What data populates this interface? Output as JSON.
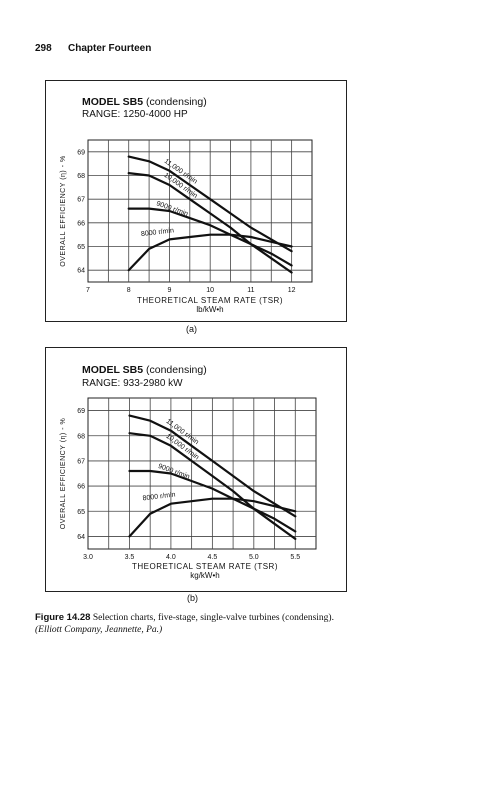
{
  "page": {
    "number": "298",
    "chapter": "Chapter Fourteen"
  },
  "figure": {
    "label": "Figure 14.28",
    "caption": "Selection charts, five-stage, single-valve turbines (condensing).",
    "credit": "(Elliott Company, Jeannette, Pa.)"
  },
  "chart_data": [
    {
      "type": "line",
      "panel_label": "(a)",
      "title_bold": "MODEL SB5",
      "title_rest": "(condensing)",
      "subtitle": "RANGE: 1250-4000 HP",
      "xlabel": "THEORETICAL STEAM RATE (TSR)",
      "xunit": "lb/kW•h",
      "ylabel": "OVERALL EFFICIENCY (η) - %",
      "xlim": [
        7,
        12.5
      ],
      "ylim": [
        63.5,
        69.5
      ],
      "xticks": [
        "7",
        "8",
        "9",
        "10",
        "11",
        "12"
      ],
      "xtick_values": [
        7,
        8,
        9,
        10,
        11,
        12
      ],
      "yticks": [
        "69",
        "68",
        "67",
        "66",
        "65",
        "64"
      ],
      "ytick_values": [
        69,
        68,
        67,
        66,
        65,
        64
      ],
      "grid": true,
      "series": [
        {
          "name": "11,000 r/min",
          "x": [
            8,
            8.5,
            9,
            9.5,
            10,
            10.5,
            11,
            11.5,
            12
          ],
          "y": [
            68.8,
            68.6,
            68.2,
            67.6,
            67.0,
            66.4,
            65.8,
            65.3,
            64.8
          ]
        },
        {
          "name": "10,000 r/min",
          "x": [
            8,
            8.5,
            9,
            9.5,
            10,
            10.5,
            11,
            11.5,
            12
          ],
          "y": [
            68.1,
            68.0,
            67.6,
            67.0,
            66.4,
            65.8,
            65.1,
            64.5,
            63.9
          ]
        },
        {
          "name": "9000 r/min",
          "x": [
            8,
            8.5,
            9,
            9.5,
            10,
            10.5,
            11,
            11.5,
            12
          ],
          "y": [
            66.6,
            66.6,
            66.5,
            66.2,
            65.9,
            65.5,
            65.1,
            64.7,
            64.2
          ]
        },
        {
          "name": "8000 r/min",
          "x": [
            8,
            8.5,
            9,
            9.5,
            10,
            10.5,
            11,
            11.5,
            12
          ],
          "y": [
            64.0,
            64.9,
            65.3,
            65.4,
            65.5,
            65.5,
            65.4,
            65.2,
            65.0
          ]
        }
      ]
    },
    {
      "type": "line",
      "panel_label": "(b)",
      "title_bold": "MODEL SB5",
      "title_rest": "(condensing)",
      "subtitle": "RANGE: 933-2980 kW",
      "xlabel": "THEORETICAL STEAM RATE (TSR)",
      "xunit": "kg/kW•h",
      "ylabel": "OVERALL EFFICIENCY (η) - %",
      "xlim": [
        3.0,
        5.75
      ],
      "ylim": [
        63.5,
        69.5
      ],
      "xticks": [
        "3.0",
        "3.5",
        "4.0",
        "4.5",
        "5.0",
        "5.5"
      ],
      "xtick_values": [
        3.0,
        3.5,
        4.0,
        4.5,
        5.0,
        5.5
      ],
      "yticks": [
        "69",
        "68",
        "67",
        "66",
        "65",
        "64"
      ],
      "ytick_values": [
        69,
        68,
        67,
        66,
        65,
        64
      ],
      "grid": true,
      "series": [
        {
          "name": "11,000 r/min",
          "x": [
            3.5,
            3.75,
            4.0,
            4.25,
            4.5,
            4.75,
            5.0,
            5.25,
            5.5
          ],
          "y": [
            68.8,
            68.6,
            68.2,
            67.6,
            67.0,
            66.4,
            65.8,
            65.3,
            64.8
          ]
        },
        {
          "name": "10,000 r/min",
          "x": [
            3.5,
            3.75,
            4.0,
            4.25,
            4.5,
            4.75,
            5.0,
            5.25,
            5.5
          ],
          "y": [
            68.1,
            68.0,
            67.6,
            67.0,
            66.4,
            65.8,
            65.1,
            64.5,
            63.9
          ]
        },
        {
          "name": "9000 r/min",
          "x": [
            3.5,
            3.75,
            4.0,
            4.25,
            4.5,
            4.75,
            5.0,
            5.25,
            5.5
          ],
          "y": [
            66.6,
            66.6,
            66.5,
            66.2,
            65.9,
            65.5,
            65.1,
            64.7,
            64.2
          ]
        },
        {
          "name": "8000 r/min",
          "x": [
            3.5,
            3.75,
            4.0,
            4.25,
            4.5,
            4.75,
            5.0,
            5.25,
            5.5
          ],
          "y": [
            64.0,
            64.9,
            65.3,
            65.4,
            65.5,
            65.5,
            65.4,
            65.2,
            65.0
          ]
        }
      ]
    }
  ]
}
